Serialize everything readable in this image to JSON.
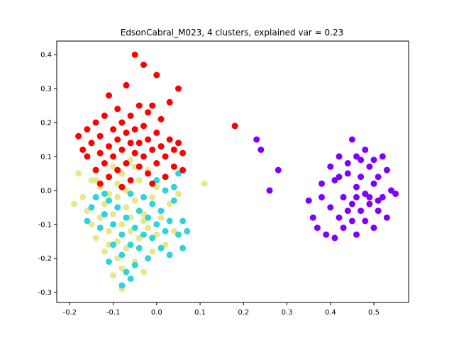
{
  "chart_data": {
    "type": "scatter",
    "title": "EdsonCabral_M023, 4 clusters, explained var = 0.23",
    "xlabel": "",
    "ylabel": "",
    "xlim": [
      -0.23,
      0.58
    ],
    "ylim": [
      -0.33,
      0.44
    ],
    "xticks": [
      -0.2,
      -0.1,
      0.0,
      0.1,
      0.2,
      0.3,
      0.4,
      0.5
    ],
    "xtick_labels": [
      "-0.2",
      "-0.1",
      "0.0",
      "0.1",
      "0.2",
      "0.3",
      "0.4",
      "0.5"
    ],
    "yticks": [
      -0.3,
      -0.2,
      -0.1,
      0.0,
      0.1,
      0.2,
      0.3,
      0.4
    ],
    "ytick_labels": [
      "-0.3",
      "-0.2",
      "-0.1",
      "0.0",
      "0.1",
      "0.2",
      "0.3",
      "0.4"
    ],
    "grid": false,
    "legend": "none",
    "series": [
      {
        "color": "#e8e88a",
        "points": [
          [
            -0.19,
            -0.04
          ],
          [
            -0.18,
            0.05
          ],
          [
            -0.17,
            -0.02
          ],
          [
            -0.16,
            -0.06
          ],
          [
            -0.15,
            0.03
          ],
          [
            -0.15,
            -0.1
          ],
          [
            -0.14,
            -0.14
          ],
          [
            -0.14,
            0.06
          ],
          [
            -0.13,
            -0.08
          ],
          [
            -0.13,
            0.01
          ],
          [
            -0.12,
            -0.18
          ],
          [
            -0.12,
            -0.04
          ],
          [
            -0.12,
            0.08
          ],
          [
            -0.11,
            -0.12
          ],
          [
            -0.11,
            -0.01
          ],
          [
            -0.11,
            0.04
          ],
          [
            -0.1,
            -0.25
          ],
          [
            -0.1,
            -0.07
          ],
          [
            -0.1,
            0.07
          ],
          [
            -0.09,
            -0.2
          ],
          [
            -0.09,
            -0.15
          ],
          [
            -0.09,
            -0.02
          ],
          [
            -0.09,
            0.02
          ],
          [
            -0.08,
            -0.23
          ],
          [
            -0.08,
            -0.1
          ],
          [
            -0.08,
            0.05
          ],
          [
            -0.07,
            -0.17
          ],
          [
            -0.07,
            -0.05
          ],
          [
            -0.07,
            0.0
          ],
          [
            -0.06,
            -0.12
          ],
          [
            -0.06,
            -0.08
          ],
          [
            -0.06,
            0.09
          ],
          [
            -0.05,
            -0.21
          ],
          [
            -0.05,
            -0.03
          ],
          [
            -0.04,
            -0.14
          ],
          [
            -0.04,
            0.03
          ],
          [
            -0.03,
            -0.24
          ],
          [
            -0.03,
            -0.07
          ],
          [
            -0.02,
            -0.11
          ],
          [
            -0.02,
            0.06
          ],
          [
            -0.01,
            -0.18
          ],
          [
            -0.01,
            -0.02
          ],
          [
            0.0,
            -0.13
          ],
          [
            0.0,
            0.01
          ],
          [
            0.01,
            -0.08
          ],
          [
            0.02,
            -0.16
          ],
          [
            0.03,
            -0.04
          ],
          [
            0.04,
            -0.12
          ],
          [
            0.05,
            -0.01
          ],
          [
            0.11,
            0.02
          ],
          [
            -0.08,
            -0.29
          ],
          [
            -0.14,
            0.03
          ],
          [
            -0.05,
            0.07
          ],
          [
            -0.11,
            -0.16
          ],
          [
            -0.03,
            -0.09
          ]
        ]
      },
      {
        "color": "#2dd4dc",
        "points": [
          [
            -0.16,
            -0.09
          ],
          [
            -0.15,
            -0.05
          ],
          [
            -0.14,
            -0.02
          ],
          [
            -0.13,
            -0.11
          ],
          [
            -0.12,
            -0.07
          ],
          [
            -0.11,
            -0.21
          ],
          [
            -0.11,
            -0.03
          ],
          [
            -0.1,
            -0.16
          ],
          [
            -0.1,
            -0.1
          ],
          [
            -0.09,
            -0.05
          ],
          [
            -0.08,
            -0.19
          ],
          [
            -0.08,
            -0.13
          ],
          [
            -0.07,
            -0.24
          ],
          [
            -0.07,
            -0.08
          ],
          [
            -0.06,
            -0.16
          ],
          [
            -0.06,
            -0.01
          ],
          [
            -0.05,
            -0.11
          ],
          [
            -0.05,
            -0.22
          ],
          [
            -0.04,
            -0.06
          ],
          [
            -0.04,
            -0.17
          ],
          [
            -0.03,
            -0.13
          ],
          [
            -0.03,
            -0.02
          ],
          [
            -0.02,
            -0.2
          ],
          [
            -0.02,
            -0.08
          ],
          [
            -0.01,
            -0.14
          ],
          [
            -0.01,
            -0.04
          ],
          [
            0.0,
            -0.1
          ],
          [
            0.0,
            0.03
          ],
          [
            0.01,
            -0.17
          ],
          [
            0.01,
            -0.06
          ],
          [
            0.02,
            -0.12
          ],
          [
            0.02,
            0.0
          ],
          [
            0.03,
            -0.09
          ],
          [
            0.03,
            -0.19
          ],
          [
            0.04,
            -0.03
          ],
          [
            0.05,
            -0.13
          ],
          [
            0.05,
            0.05
          ],
          [
            0.06,
            -0.17
          ],
          [
            0.06,
            -0.09
          ],
          [
            0.07,
            -0.12
          ],
          [
            -0.08,
            -0.28
          ],
          [
            0.01,
            0.13
          ],
          [
            -0.12,
            -0.01
          ],
          [
            -0.06,
            -0.26
          ],
          [
            0.04,
            0.01
          ]
        ]
      },
      {
        "color": "#ff0000",
        "points": [
          [
            -0.18,
            0.16
          ],
          [
            -0.17,
            0.12
          ],
          [
            -0.16,
            0.18
          ],
          [
            -0.16,
            0.1
          ],
          [
            -0.15,
            0.14
          ],
          [
            -0.14,
            0.06
          ],
          [
            -0.14,
            0.2
          ],
          [
            -0.13,
            0.11
          ],
          [
            -0.13,
            0.16
          ],
          [
            -0.12,
            0.08
          ],
          [
            -0.12,
            0.22
          ],
          [
            -0.11,
            0.13
          ],
          [
            -0.11,
            0.28
          ],
          [
            -0.11,
            0.04
          ],
          [
            -0.1,
            0.18
          ],
          [
            -0.1,
            0.1
          ],
          [
            -0.09,
            0.15
          ],
          [
            -0.09,
            0.24
          ],
          [
            -0.09,
            0.06
          ],
          [
            -0.08,
            0.2
          ],
          [
            -0.08,
            0.12
          ],
          [
            -0.07,
            0.17
          ],
          [
            -0.07,
            0.08
          ],
          [
            -0.07,
            0.31
          ],
          [
            -0.06,
            0.14
          ],
          [
            -0.06,
            0.22
          ],
          [
            -0.06,
            0.03
          ],
          [
            -0.05,
            0.4
          ],
          [
            -0.05,
            0.11
          ],
          [
            -0.05,
            0.18
          ],
          [
            -0.04,
            0.07
          ],
          [
            -0.04,
            0.25
          ],
          [
            -0.04,
            0.14
          ],
          [
            -0.03,
            0.37
          ],
          [
            -0.03,
            0.1
          ],
          [
            -0.03,
            0.19
          ],
          [
            -0.02,
            0.05
          ],
          [
            -0.02,
            0.15
          ],
          [
            -0.02,
            0.23
          ],
          [
            -0.01,
            0.12
          ],
          [
            -0.01,
            0.25
          ],
          [
            0.0,
            0.34
          ],
          [
            0.0,
            0.08
          ],
          [
            0.0,
            0.17
          ],
          [
            0.01,
            0.13
          ],
          [
            0.01,
            0.21
          ],
          [
            0.02,
            0.1
          ],
          [
            0.02,
            0.04
          ],
          [
            0.03,
            0.15
          ],
          [
            0.03,
            0.26
          ],
          [
            0.04,
            0.12
          ],
          [
            0.04,
            0.07
          ],
          [
            0.05,
            0.14
          ],
          [
            0.05,
            0.3
          ],
          [
            0.06,
            0.11
          ],
          [
            0.06,
            0.06
          ],
          [
            0.18,
            0.19
          ],
          [
            -0.13,
            0.02
          ],
          [
            -0.01,
            0.02
          ],
          [
            -0.08,
            0.01
          ]
        ]
      },
      {
        "color": "#7f00ff",
        "points": [
          [
            0.23,
            0.15
          ],
          [
            0.24,
            0.12
          ],
          [
            0.26,
            0.0
          ],
          [
            0.28,
            0.06
          ],
          [
            0.35,
            -0.03
          ],
          [
            0.36,
            -0.08
          ],
          [
            0.37,
            -0.11
          ],
          [
            0.38,
            0.02
          ],
          [
            0.38,
            -0.02
          ],
          [
            0.39,
            -0.13
          ],
          [
            0.4,
            0.07
          ],
          [
            0.4,
            -0.05
          ],
          [
            0.41,
            -0.14
          ],
          [
            0.41,
            0.03
          ],
          [
            0.42,
            -0.08
          ],
          [
            0.42,
            0.1
          ],
          [
            0.43,
            -0.02
          ],
          [
            0.43,
            -0.11
          ],
          [
            0.44,
            0.05
          ],
          [
            0.44,
            0.08
          ],
          [
            0.45,
            -0.04
          ],
          [
            0.45,
            0.15
          ],
          [
            0.45,
            -0.09
          ],
          [
            0.46,
            0.01
          ],
          [
            0.46,
            0.1
          ],
          [
            0.46,
            -0.13
          ],
          [
            0.47,
            -0.06
          ],
          [
            0.47,
            0.04
          ],
          [
            0.48,
            0.12
          ],
          [
            0.48,
            -0.01
          ],
          [
            0.48,
            -0.09
          ],
          [
            0.49,
            0.07
          ],
          [
            0.49,
            -0.04
          ],
          [
            0.5,
            0.02
          ],
          [
            0.5,
            -0.11
          ],
          [
            0.5,
            0.09
          ],
          [
            0.51,
            -0.06
          ],
          [
            0.51,
            0.04
          ],
          [
            0.52,
            0.1
          ],
          [
            0.52,
            -0.02
          ],
          [
            0.53,
            -0.08
          ],
          [
            0.53,
            0.06
          ],
          [
            0.54,
            0.0
          ],
          [
            0.55,
            -0.01
          ],
          [
            0.47,
            0.09
          ],
          [
            0.44,
            -0.06
          ],
          [
            0.49,
            -0.02
          ],
          [
            0.42,
            0.04
          ],
          [
            0.51,
            -0.03
          ],
          [
            0.46,
            -0.02
          ]
        ]
      }
    ]
  }
}
